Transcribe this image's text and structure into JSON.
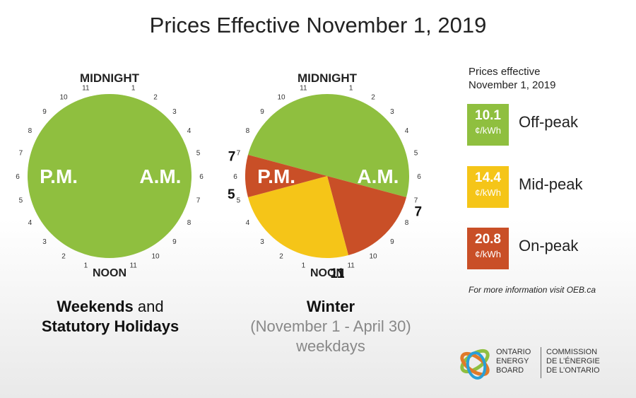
{
  "title": "Prices Effective November 1, 2019",
  "colors": {
    "off_peak": "#8fbf3f",
    "mid_peak": "#f5c518",
    "on_peak": "#c94f27"
  },
  "chart_data": [
    {
      "type": "pie",
      "title": "Weekends and Statutory Holidays",
      "top_label": "MIDNIGHT",
      "bottom_label": "NOON",
      "am_label": "A.M.",
      "pm_label": "P.M.",
      "hour_ticks_am": [
        "1",
        "2",
        "3",
        "4",
        "5",
        "6",
        "7",
        "8",
        "9",
        "10",
        "11"
      ],
      "hour_ticks_pm": [
        "1",
        "2",
        "3",
        "4",
        "5",
        "6",
        "7",
        "8",
        "9",
        "10",
        "11"
      ],
      "segments": [
        {
          "period": "Off-peak",
          "from_hour": 0,
          "to_hour": 24
        }
      ]
    },
    {
      "type": "pie",
      "title": "Winter",
      "subtitle": "(November 1 - April 30)",
      "subtitle2": "weekdays",
      "top_label": "MIDNIGHT",
      "bottom_label": "NOON",
      "am_label": "A.M.",
      "pm_label": "P.M.",
      "boundary_labels": [
        "7",
        "11",
        "5",
        "7"
      ],
      "segments": [
        {
          "period": "Off-peak",
          "from_hour": 19,
          "to_hour": 7
        },
        {
          "period": "On-peak",
          "from_hour": 7,
          "to_hour": 11
        },
        {
          "period": "Mid-peak",
          "from_hour": 11,
          "to_hour": 17
        },
        {
          "period": "On-peak",
          "from_hour": 17,
          "to_hour": 19
        }
      ]
    }
  ],
  "legend": {
    "heading_line1": "Prices effective",
    "heading_line2": "November 1, 2019",
    "items": [
      {
        "price": "10.1",
        "unit": "¢/kWh",
        "label": "Off-peak"
      },
      {
        "price": "14.4",
        "unit": "¢/kWh",
        "label": "Mid-peak"
      },
      {
        "price": "20.8",
        "unit": "¢/kWh",
        "label": "On-peak"
      }
    ]
  },
  "captions": {
    "left_bold1": "Weekends",
    "left_and": "and",
    "left_bold2": "Statutory Holidays"
  },
  "more_info": "For more information visit OEB.ca",
  "logo": {
    "en": "ONTARIO\nENERGY\nBOARD",
    "fr": "COMMISSION\nDE L’ÉNERGIE\nDE L’ONTARIO"
  }
}
